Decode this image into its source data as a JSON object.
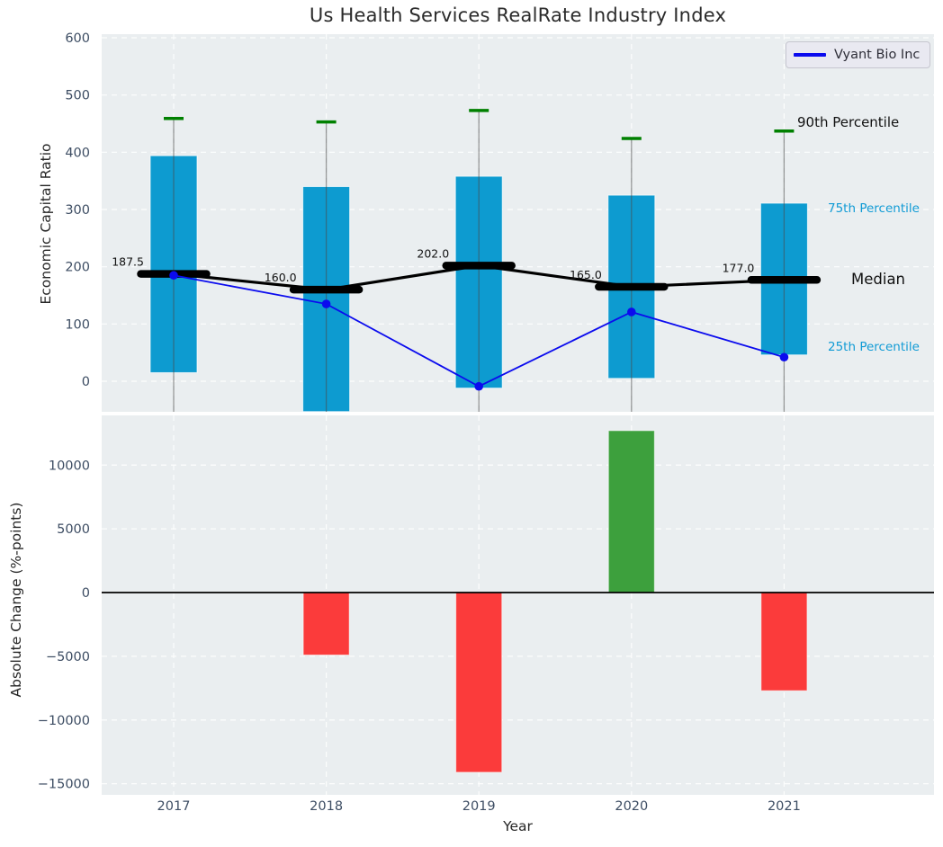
{
  "page": {
    "title": "Us Health Services RealRate Industry Index"
  },
  "legend": {
    "label": "Vyant Bio Inc"
  },
  "colors": {
    "panel_bg": "#eaeef0",
    "gridline": "#ffffff",
    "box_fill": "#0d9bd0",
    "whisker_cap": "#008000",
    "whisker_line": "#4a4a4a",
    "median_line": "#000000",
    "vyant_line": "#0b0bee",
    "bar_positive": "#3da03d",
    "bar_negative": "#fb3b3b",
    "tick_label": "#3d4d63",
    "text": "#262626",
    "accent_cyan": "#119bd5"
  },
  "chart_data": [
    {
      "type": "box-median-line",
      "panel": "top",
      "title": "Us Health Services RealRate Industry Index",
      "ylabel": "Economic Capital Ratio",
      "ylim": [
        -53,
        606
      ],
      "yticks": [
        0,
        100,
        200,
        300,
        400,
        500,
        600
      ],
      "grid": true,
      "legend_position": "upper right",
      "categories": [
        "2017",
        "2018",
        "2019",
        "2020",
        "2021"
      ],
      "series": [
        {
          "name": "90th Percentile",
          "values": [
            459,
            453,
            473,
            424,
            437
          ]
        },
        {
          "name": "75th Percentile",
          "values": [
            394,
            340,
            358,
            325,
            311
          ]
        },
        {
          "name": "Median",
          "values": [
            187.5,
            160.0,
            202.0,
            165.0,
            177.0
          ]
        },
        {
          "name": "25th Percentile",
          "values": [
            15,
            -53,
            -12,
            5,
            46
          ]
        },
        {
          "name": "Vyant Bio Inc",
          "values": [
            185,
            135,
            -9,
            121,
            42
          ]
        }
      ],
      "median_labels": [
        "187.5",
        "160.0",
        "202.0",
        "165.0",
        "177.0"
      ],
      "annotations": [
        {
          "text": "90th Percentile",
          "color": "#111111"
        },
        {
          "text": "75th Percentile",
          "color": "#119bd5"
        },
        {
          "text": "Median",
          "color": "#111111"
        },
        {
          "text": "25th Percentile",
          "color": "#119bd5"
        }
      ]
    },
    {
      "type": "bar",
      "panel": "bottom",
      "ylabel": "Absolute Change (%-points)",
      "xlabel": "Year",
      "ylim": [
        -15870,
        13900
      ],
      "yticks": [
        -15000,
        -10000,
        -5000,
        0,
        5000,
        10000
      ],
      "grid": true,
      "zero_line": true,
      "categories": [
        "2017",
        "2018",
        "2019",
        "2020",
        "2021"
      ],
      "values": [
        null,
        -4900,
        -14100,
        12700,
        -7700
      ]
    }
  ]
}
